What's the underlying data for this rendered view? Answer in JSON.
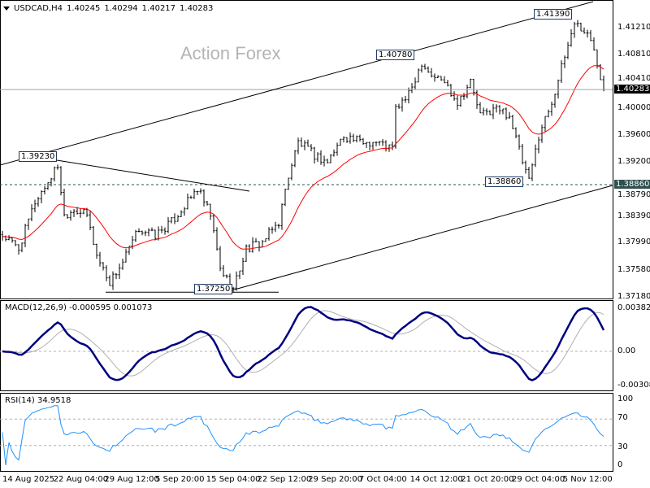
{
  "header": {
    "symbol": "USDCAD,H4",
    "open": "1.40245",
    "high": "1.40294",
    "low": "1.40217",
    "close": "1.40283"
  },
  "watermark": "Action Forex",
  "colors": {
    "bars": "#000000",
    "ma": "#ff0000",
    "macd_main": "#000080",
    "macd_signal": "#b0b0b0",
    "rsi": "#1e90ff",
    "price_tag": "#000000",
    "level_tag": "#2f4f4f"
  },
  "chart_data": {
    "type": "line",
    "title": "USDCAD,H4",
    "price_axis": {
      "ticks": [
        "1.41210",
        "1.40810",
        "1.40410",
        "1.40000",
        "1.39600",
        "1.39200",
        "1.38790",
        "1.38390",
        "1.37990",
        "1.37580",
        "1.37180"
      ],
      "range": [
        1.3718,
        1.4121
      ]
    },
    "current_price": "1.40283",
    "level_line": "1.38860",
    "annotations": [
      "1.39230",
      "1.40780",
      "1.41390",
      "1.38860",
      "1.37250"
    ],
    "x_ticks": [
      "14 Aug 2025",
      "22 Aug 04:00",
      "29 Aug 12:00",
      "5 Sep 20:00",
      "15 Sep 04:00",
      "22 Sep 12:00",
      "29 Sep 20:00",
      "7 Oct 04:00",
      "14 Oct 12:00",
      "21 Oct 20:00",
      "29 Oct 04:00",
      "5 Nov 12:00"
    ],
    "close_keypoints": [
      [
        0,
        1.381
      ],
      [
        5,
        1.379
      ],
      [
        10,
        1.386
      ],
      [
        14,
        1.389
      ],
      [
        17,
        1.3915
      ],
      [
        19,
        1.384
      ],
      [
        22,
        1.385
      ],
      [
        26,
        1.384
      ],
      [
        29,
        1.378
      ],
      [
        33,
        1.374
      ],
      [
        37,
        1.377
      ],
      [
        42,
        1.382
      ],
      [
        47,
        1.381
      ],
      [
        52,
        1.383
      ],
      [
        57,
        1.386
      ],
      [
        60,
        1.388
      ],
      [
        64,
        1.384
      ],
      [
        67,
        1.376
      ],
      [
        71,
        1.373
      ],
      [
        75,
        1.379
      ],
      [
        80,
        1.38
      ],
      [
        85,
        1.383
      ],
      [
        88,
        1.39
      ],
      [
        91,
        1.395
      ],
      [
        96,
        1.393
      ],
      [
        100,
        1.392
      ],
      [
        105,
        1.396
      ],
      [
        110,
        1.395
      ],
      [
        115,
        1.395
      ],
      [
        120,
        1.394
      ],
      [
        121,
        1.4
      ],
      [
        125,
        1.402
      ],
      [
        129,
        1.407
      ],
      [
        132,
        1.405
      ],
      [
        136,
        1.404
      ],
      [
        140,
        1.401
      ],
      [
        144,
        1.404
      ],
      [
        147,
        1.399
      ],
      [
        152,
        1.4
      ],
      [
        156,
        1.399
      ],
      [
        160,
        1.392
      ],
      [
        162,
        1.389
      ],
      [
        165,
        1.396
      ],
      [
        169,
        1.401
      ],
      [
        172,
        1.406
      ],
      [
        176,
        1.413
      ],
      [
        180,
        1.411
      ],
      [
        182,
        1.409
      ],
      [
        184,
        1.405
      ],
      [
        185,
        1.4028
      ]
    ],
    "macd": {
      "label": "MACD(12,26,9) -0.000595 0.001073",
      "params": [
        12,
        26,
        9
      ],
      "ticks": [
        "0.003824",
        "0.00",
        "-0.003084"
      ]
    },
    "rsi": {
      "label": "RSI(14) 34.9518",
      "period": 14,
      "ticks": [
        "100",
        "70",
        "30",
        "0"
      ]
    }
  }
}
